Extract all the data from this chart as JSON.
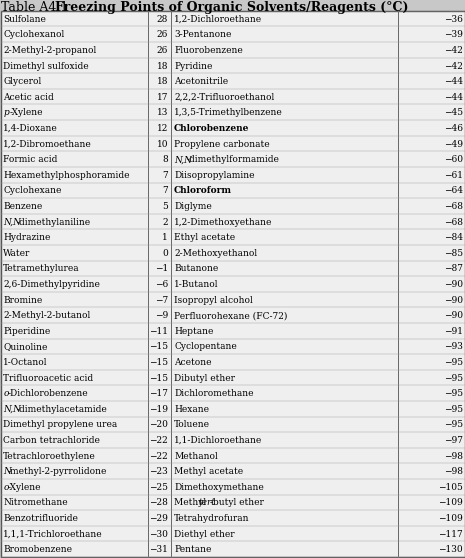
{
  "title_prefix": "Table A4.1  ",
  "title_main": "Freezing Points of Organic Solvents/Reagents (°C)",
  "background_color": "#c8c8c8",
  "table_bg": "#e8e8e8",
  "left_data": [
    [
      "Sulfolane",
      "28",
      "normal"
    ],
    [
      "Cyclohexanol",
      "26",
      "normal"
    ],
    [
      "2-Methyl-2-propanol",
      "26",
      "normal"
    ],
    [
      "Dimethyl sulfoxide",
      "18",
      "normal"
    ],
    [
      "Glycerol",
      "18",
      "normal"
    ],
    [
      "Acetic acid",
      "17",
      "normal"
    ],
    [
      "p-Xylene",
      "13",
      "italic_p"
    ],
    [
      "1,4-Dioxane",
      "12",
      "normal"
    ],
    [
      "1,2-Dibromoethane",
      "10",
      "normal"
    ],
    [
      "Formic acid",
      "8",
      "normal"
    ],
    [
      "Hexamethylphosphoramide",
      "7",
      "normal"
    ],
    [
      "Cyclohexane",
      "7",
      "normal"
    ],
    [
      "Benzene",
      "5",
      "normal"
    ],
    [
      "N,N-dimethylaniline",
      "2",
      "italic_NN"
    ],
    [
      "Hydrazine",
      "1",
      "normal"
    ],
    [
      "Water",
      "0",
      "normal"
    ],
    [
      "Tetramethylurea",
      "−1",
      "normal"
    ],
    [
      "2,6-Dimethylpyridine",
      "−6",
      "normal"
    ],
    [
      "Bromine",
      "−7",
      "normal"
    ],
    [
      "2-Methyl-2-butanol",
      "−9",
      "normal"
    ],
    [
      "Piperidine",
      "−11",
      "normal"
    ],
    [
      "Quinoline",
      "−15",
      "normal"
    ],
    [
      "1-Octanol",
      "−15",
      "normal"
    ],
    [
      "Trifluoroacetic acid",
      "−15",
      "normal"
    ],
    [
      "o-Dichlorobenzene",
      "−17",
      "italic_o"
    ],
    [
      "N,N-dimethylacetamide",
      "−19",
      "italic_NN"
    ],
    [
      "Dimethyl propylene urea",
      "−20",
      "normal"
    ],
    [
      "Carbon tetrachloride",
      "−22",
      "normal"
    ],
    [
      "Tetrachloroethylene",
      "−22",
      "normal"
    ],
    [
      "N-methyl-2-pyrrolidone",
      "−23",
      "italic_N"
    ],
    [
      "o-Xylene",
      "−25",
      "italic_o"
    ],
    [
      "Nitromethane",
      "−28",
      "normal"
    ],
    [
      "Benzotrifluoride",
      "−29",
      "normal"
    ],
    [
      "1,1,1-Trichloroethane",
      "−30",
      "normal"
    ],
    [
      "Bromobenzene",
      "−31",
      "normal"
    ]
  ],
  "right_data": [
    [
      "1,2-Dichloroethane",
      "−36",
      "normal"
    ],
    [
      "3-Pentanone",
      "−39",
      "normal"
    ],
    [
      "Fluorobenzene",
      "−42",
      "normal"
    ],
    [
      "Pyridine",
      "−42",
      "normal"
    ],
    [
      "Acetonitrile",
      "−44",
      "normal"
    ],
    [
      "2,2,2-Trifluoroethanol",
      "−44",
      "normal"
    ],
    [
      "1,3,5-Trimethylbenzene",
      "−45",
      "normal"
    ],
    [
      "Chlorobenzene",
      "−46",
      "bold"
    ],
    [
      "Propylene carbonate",
      "−49",
      "normal"
    ],
    [
      "N,N-dimethylformamide",
      "−60",
      "italic_NN"
    ],
    [
      "Diisopropylamine",
      "−61",
      "normal"
    ],
    [
      "Chloroform",
      "−64",
      "bold"
    ],
    [
      "Diglyme",
      "−68",
      "normal"
    ],
    [
      "1,2-Dimethoxyethane",
      "−68",
      "normal"
    ],
    [
      "Ethyl acetate",
      "−84",
      "normal"
    ],
    [
      "2-Methoxyethanol",
      "−85",
      "normal"
    ],
    [
      "Butanone",
      "−87",
      "normal"
    ],
    [
      "1-Butanol",
      "−90",
      "normal"
    ],
    [
      "Isopropyl alcohol",
      "−90",
      "normal"
    ],
    [
      "Perfluorohexane (FC-72)",
      "−90",
      "normal"
    ],
    [
      "Heptane",
      "−91",
      "normal"
    ],
    [
      "Cyclopentane",
      "−93",
      "normal"
    ],
    [
      "Acetone",
      "−95",
      "normal"
    ],
    [
      "Dibutyl ether",
      "−95",
      "normal"
    ],
    [
      "Dichloromethane",
      "−95",
      "normal"
    ],
    [
      "Hexane",
      "−95",
      "normal"
    ],
    [
      "Toluene",
      "−95",
      "normal"
    ],
    [
      "1,1-Dichloroethane",
      "−97",
      "normal"
    ],
    [
      "Methanol",
      "−98",
      "normal"
    ],
    [
      "Methyl acetate",
      "−98",
      "normal"
    ],
    [
      "Dimethoxymethane",
      "−105",
      "normal"
    ],
    [
      "Methyl tert-butyl ether",
      "−109",
      "tert"
    ],
    [
      "Tetrahydrofuran",
      "−109",
      "normal"
    ],
    [
      "Diethyl ether",
      "−117",
      "normal"
    ],
    [
      "Pentane",
      "−130",
      "normal"
    ]
  ]
}
